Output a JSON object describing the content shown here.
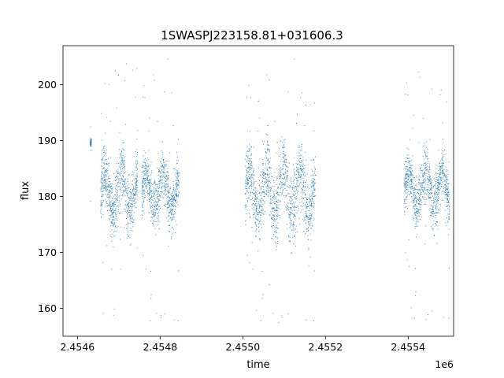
{
  "chart_data": {
    "type": "scatter",
    "title": "1SWASPJ223158.81+031606.3",
    "xlabel": "time",
    "ylabel": "flux",
    "x_offset_label": "1e6",
    "x_ticks": [
      "2.4546",
      "2.4548",
      "2.4550",
      "2.4552",
      "2.4554"
    ],
    "x_tick_values": [
      2454600,
      2454800,
      2455000,
      2455200,
      2455400
    ],
    "y_ticks": [
      "160",
      "170",
      "180",
      "190",
      "200"
    ],
    "y_tick_values": [
      160,
      170,
      180,
      190,
      200
    ],
    "xlim": [
      2454565,
      2455510
    ],
    "ylim": [
      155,
      207
    ],
    "grid": false,
    "marker_color": "#1f77b4",
    "series": [
      {
        "segments": [
          {
            "x_start": 2454630,
            "x_end": 2454633,
            "y_center": 189.5,
            "y_sd": 0.6
          },
          {
            "x_start": 2454655,
            "x_end": 2454745,
            "y_center": 181,
            "y_sd": 3.5
          },
          {
            "x_start": 2454755,
            "x_end": 2454845,
            "y_center": 181,
            "y_sd": 3.2
          },
          {
            "x_start": 2455005,
            "x_end": 2455175,
            "y_center": 181,
            "y_sd": 4.2
          },
          {
            "x_start": 2455390,
            "x_end": 2455500,
            "y_center": 181.5,
            "y_sd": 3.2
          }
        ]
      }
    ]
  }
}
